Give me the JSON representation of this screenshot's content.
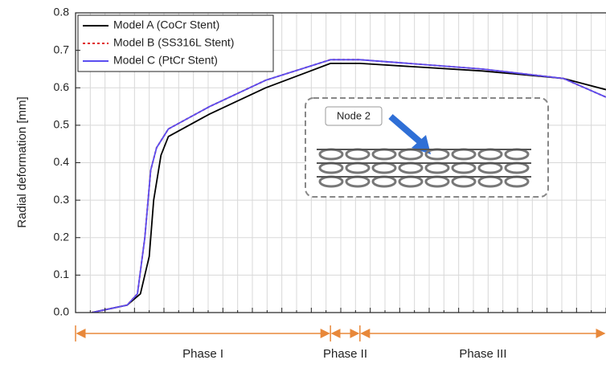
{
  "chart_data": {
    "type": "line",
    "y_label": "Radial deformation [mm]",
    "xlim": [
      0,
      36
    ],
    "xticks": [
      0,
      1,
      2,
      3,
      4,
      5,
      6,
      7,
      8,
      9,
      10,
      11,
      12,
      13,
      14,
      15,
      16,
      17,
      18,
      19,
      20,
      21,
      22,
      23,
      24,
      25,
      26,
      27,
      28,
      29,
      30,
      31,
      32,
      33,
      34,
      35,
      36
    ],
    "ylim": [
      0,
      0.8
    ],
    "yticks": [
      {
        "value": 0,
        "label": "0.0"
      },
      0.1,
      0.2,
      0.3,
      0.4,
      0.5,
      0.6,
      0.7,
      0.8
    ],
    "grid": true,
    "legend": "upper left",
    "series": [
      {
        "name": "Model A (CoCr Stent)",
        "color": "#000000",
        "dash": "solid",
        "x": [
          1.1,
          3.5,
          4.4,
          5.0,
          5.3,
          5.8,
          6.3,
          9.1,
          12.9,
          17.3,
          19.3,
          27.6,
          33.1,
          36
        ],
        "values": [
          0.0,
          0.02,
          0.05,
          0.15,
          0.3,
          0.42,
          0.47,
          0.53,
          0.6,
          0.665,
          0.665,
          0.645,
          0.625,
          0.595
        ]
      },
      {
        "name": "Model B (SS316L Stent)",
        "color": "#e02020",
        "dash": "dotted",
        "x": [
          1.1,
          3.5,
          4.2,
          4.7,
          5.1,
          5.5,
          6.3,
          9.1,
          12.9,
          17.3,
          19.3,
          27.6,
          33.1,
          36
        ],
        "values": [
          0.0,
          0.02,
          0.05,
          0.2,
          0.38,
          0.44,
          0.49,
          0.55,
          0.62,
          0.675,
          0.675,
          0.65,
          0.625,
          0.575
        ]
      },
      {
        "name": "Model C (PtCr Stent)",
        "color": "#5a4df0",
        "dash": "solid",
        "x": [
          1.1,
          3.5,
          4.2,
          4.7,
          5.1,
          5.5,
          6.3,
          9.1,
          12.9,
          17.3,
          19.3,
          27.6,
          33.1,
          36
        ],
        "values": [
          0.0,
          0.02,
          0.05,
          0.2,
          0.38,
          0.44,
          0.49,
          0.55,
          0.62,
          0.675,
          0.675,
          0.65,
          0.625,
          0.575
        ]
      }
    ],
    "phases": [
      {
        "label": "Phase I",
        "start": 0,
        "end": 17.3
      },
      {
        "label": "Phase II",
        "start": 17.3,
        "end": 19.3
      },
      {
        "label": "Phase III",
        "start": 19.3,
        "end": 36
      }
    ],
    "inset_label": "Node 2"
  }
}
